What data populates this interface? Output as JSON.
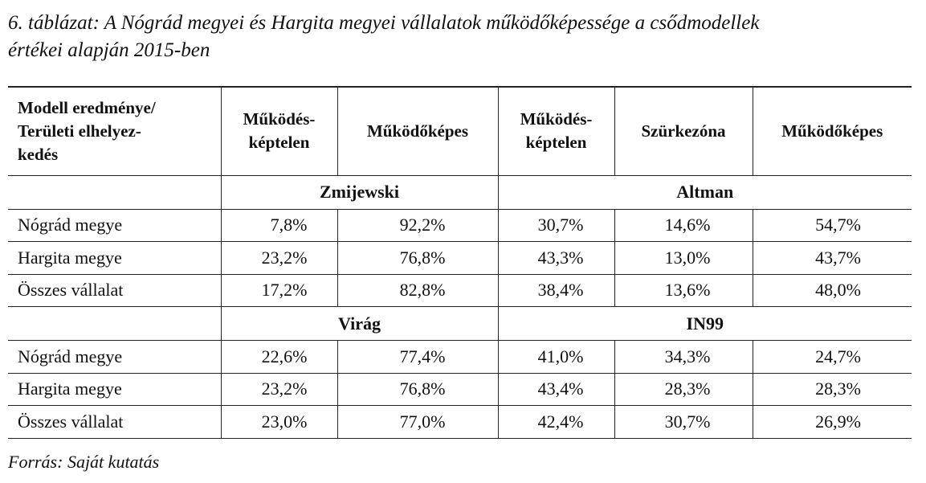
{
  "caption": "6. táblázat: A Nógrád megyei és Hargita megyei vállalatok működőképessége a csődmodellek\nértékei alapján 2015-ben",
  "table": {
    "header": [
      "Modell eredménye/\nTerületi elhelyez-\nkedés",
      "Működés-\nképtelen",
      "Működőképes",
      "Működés-\nképtelen",
      "Szürkezóna",
      "Működőképes"
    ],
    "sections": [
      {
        "models": [
          "Zmijewski",
          "Altman"
        ],
        "rows": [
          [
            "Nógrád megye",
            "7,8%",
            "92,2%",
            "30,7%",
            "14,6%",
            "54,7%"
          ],
          [
            "Hargita megye",
            "23,2%",
            "76,8%",
            "43,3%",
            "13,0%",
            "43,7%"
          ],
          [
            "Összes vállalat",
            "17,2%",
            "82,8%",
            "38,4%",
            "13,6%",
            "48,0%"
          ]
        ]
      },
      {
        "models": [
          "Virág",
          "IN99"
        ],
        "rows": [
          [
            "Nógrád megye",
            "22,6%",
            "77,4%",
            "41,0%",
            "34,3%",
            "24,7%"
          ],
          [
            "Hargita megye",
            "23,2%",
            "76,8%",
            "43,4%",
            "28,3%",
            "28,3%"
          ],
          [
            "Összes vállalat",
            "23,0%",
            "77,0%",
            "42,4%",
            "30,7%",
            "26,9%"
          ]
        ]
      }
    ]
  },
  "source": "Forrás: Saját kutatás"
}
